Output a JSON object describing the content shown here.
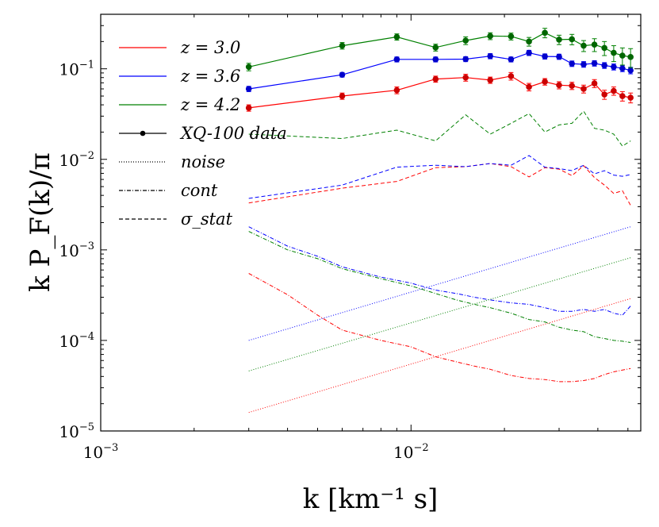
{
  "chart_data": {
    "type": "line",
    "xscale": "log",
    "yscale": "log",
    "xlim": [
      0.001,
      0.055
    ],
    "ylim": [
      1e-05,
      0.4
    ],
    "xlabel": "k [km⁻¹ s]",
    "ylabel": "k P_F(k)/π",
    "grid": false,
    "legend_position": "top-left",
    "x_ticks": [
      {
        "value": 0.001,
        "base": "10",
        "exp": "−3"
      },
      {
        "value": 0.01,
        "base": "10",
        "exp": "−2"
      }
    ],
    "y_ticks": [
      {
        "value": 1e-05,
        "base": "10",
        "exp": "−5"
      },
      {
        "value": 0.0001,
        "base": "10",
        "exp": "−4"
      },
      {
        "value": 0.001,
        "base": "10",
        "exp": "−3"
      },
      {
        "value": 0.01,
        "base": "10",
        "exp": "−2"
      },
      {
        "value": 0.1,
        "base": "10",
        "exp": "−1"
      }
    ],
    "legend": [
      {
        "label": "z = 3.0",
        "kind": "color",
        "color": "#ff0000"
      },
      {
        "label": "z = 3.6",
        "kind": "color",
        "color": "#0000ff"
      },
      {
        "label": "z = 4.2",
        "kind": "color",
        "color": "#008000"
      },
      {
        "label": "XQ-100 data",
        "kind": "data"
      },
      {
        "label": "noise",
        "kind": "dotted"
      },
      {
        "label": "cont",
        "kind": "dashdot"
      },
      {
        "label": "σ_stat",
        "kind": "dashed"
      }
    ],
    "series": [
      {
        "name": "z = 3.0",
        "color": "#ff0000",
        "data_color": "#cc0000",
        "data": {
          "x": [
            0.003,
            0.006,
            0.009,
            0.012,
            0.015,
            0.018,
            0.021,
            0.024,
            0.027,
            0.03,
            0.033,
            0.036,
            0.039,
            0.042,
            0.045,
            0.048,
            0.051
          ],
          "y": [
            0.037,
            0.05,
            0.058,
            0.077,
            0.08,
            0.075,
            0.083,
            0.063,
            0.072,
            0.066,
            0.065,
            0.06,
            0.069,
            0.052,
            0.057,
            0.05,
            0.048
          ],
          "err": [
            0.003,
            0.004,
            0.005,
            0.006,
            0.007,
            0.006,
            0.008,
            0.006,
            0.006,
            0.006,
            0.006,
            0.006,
            0.007,
            0.006,
            0.006,
            0.006,
            0.006
          ]
        },
        "sigma_stat": {
          "x": [
            0.003,
            0.006,
            0.009,
            0.012,
            0.015,
            0.018,
            0.021,
            0.024,
            0.027,
            0.03,
            0.033,
            0.036,
            0.039,
            0.042,
            0.045,
            0.048,
            0.051
          ],
          "y": [
            0.0033,
            0.0048,
            0.0057,
            0.0081,
            0.0083,
            0.009,
            0.0083,
            0.0064,
            0.0081,
            0.0078,
            0.0066,
            0.0085,
            0.0063,
            0.0052,
            0.0042,
            0.0045,
            0.0031
          ]
        },
        "noise": {
          "x": [
            0.003,
            0.051
          ],
          "y": [
            1.6e-05,
            0.00029
          ]
        },
        "cont": {
          "x": [
            0.003,
            0.004,
            0.005,
            0.006,
            0.008,
            0.01,
            0.012,
            0.014,
            0.016,
            0.018,
            0.021,
            0.024,
            0.027,
            0.03,
            0.033,
            0.036,
            0.039,
            0.042,
            0.045,
            0.048,
            0.051
          ],
          "y": [
            0.00055,
            0.00032,
            0.00019,
            0.00013,
            0.0001,
            8.5e-05,
            6.6e-05,
            5.8e-05,
            5.2e-05,
            4.8e-05,
            4.1e-05,
            3.8e-05,
            3.7e-05,
            3.5e-05,
            3.5e-05,
            3.6e-05,
            3.8e-05,
            4.2e-05,
            4.5e-05,
            4.7e-05,
            4.9e-05
          ]
        }
      },
      {
        "name": "z = 3.6",
        "color": "#0000ff",
        "data_color": "#0000cc",
        "data": {
          "x": [
            0.003,
            0.006,
            0.009,
            0.012,
            0.015,
            0.018,
            0.021,
            0.024,
            0.027,
            0.03,
            0.033,
            0.036,
            0.039,
            0.042,
            0.045,
            0.048,
            0.051
          ],
          "y": [
            0.06,
            0.086,
            0.127,
            0.127,
            0.128,
            0.138,
            0.127,
            0.15,
            0.137,
            0.136,
            0.114,
            0.112,
            0.115,
            0.109,
            0.105,
            0.101,
            0.096
          ],
          "err": [
            0.004,
            0.005,
            0.008,
            0.008,
            0.008,
            0.009,
            0.008,
            0.01,
            0.009,
            0.009,
            0.008,
            0.008,
            0.008,
            0.008,
            0.008,
            0.008,
            0.008
          ]
        },
        "sigma_stat": {
          "x": [
            0.003,
            0.006,
            0.009,
            0.012,
            0.015,
            0.018,
            0.021,
            0.024,
            0.027,
            0.03,
            0.033,
            0.036,
            0.039,
            0.042,
            0.045,
            0.048,
            0.051
          ],
          "y": [
            0.0037,
            0.0052,
            0.0082,
            0.0086,
            0.0083,
            0.009,
            0.0086,
            0.011,
            0.0082,
            0.0079,
            0.0075,
            0.0086,
            0.0069,
            0.0075,
            0.0067,
            0.0065,
            0.0068
          ]
        },
        "noise": {
          "x": [
            0.003,
            0.051
          ],
          "y": [
            0.0001,
            0.0018
          ]
        },
        "cont": {
          "x": [
            0.003,
            0.004,
            0.005,
            0.006,
            0.008,
            0.01,
            0.012,
            0.014,
            0.016,
            0.018,
            0.021,
            0.024,
            0.027,
            0.03,
            0.033,
            0.036,
            0.039,
            0.042,
            0.045,
            0.048,
            0.051
          ],
          "y": [
            0.0018,
            0.0011,
            0.00085,
            0.00065,
            0.0005,
            0.00043,
            0.00036,
            0.00033,
            0.0003,
            0.00028,
            0.00026,
            0.00025,
            0.00023,
            0.00021,
            0.00021,
            0.00022,
            0.00021,
            0.00022,
            0.0002,
            0.00019,
            0.00024
          ]
        }
      },
      {
        "name": "z = 4.2",
        "color": "#008000",
        "data_color": "#006600",
        "data": {
          "x": [
            0.003,
            0.006,
            0.009,
            0.012,
            0.015,
            0.018,
            0.021,
            0.024,
            0.027,
            0.03,
            0.033,
            0.036,
            0.039,
            0.042,
            0.045,
            0.048,
            0.051
          ],
          "y": [
            0.105,
            0.18,
            0.225,
            0.172,
            0.205,
            0.23,
            0.228,
            0.2,
            0.25,
            0.21,
            0.212,
            0.18,
            0.185,
            0.17,
            0.15,
            0.14,
            0.135
          ],
          "err": [
            0.01,
            0.015,
            0.018,
            0.015,
            0.02,
            0.02,
            0.02,
            0.022,
            0.03,
            0.025,
            0.028,
            0.025,
            0.03,
            0.03,
            0.03,
            0.03,
            0.032
          ]
        },
        "sigma_stat": {
          "x": [
            0.003,
            0.006,
            0.009,
            0.012,
            0.015,
            0.018,
            0.021,
            0.024,
            0.027,
            0.03,
            0.033,
            0.036,
            0.039,
            0.042,
            0.045,
            0.048,
            0.051
          ],
          "y": [
            0.019,
            0.017,
            0.021,
            0.016,
            0.031,
            0.019,
            0.025,
            0.032,
            0.02,
            0.024,
            0.025,
            0.034,
            0.022,
            0.021,
            0.019,
            0.014,
            0.016
          ]
        },
        "noise": {
          "x": [
            0.003,
            0.051
          ],
          "y": [
            4.6e-05,
            0.00082
          ]
        },
        "cont": {
          "x": [
            0.003,
            0.004,
            0.005,
            0.006,
            0.008,
            0.01,
            0.012,
            0.014,
            0.016,
            0.018,
            0.021,
            0.024,
            0.027,
            0.03,
            0.033,
            0.036,
            0.039,
            0.042,
            0.045,
            0.048,
            0.051
          ],
          "y": [
            0.0016,
            0.001,
            0.0008,
            0.00062,
            0.00048,
            0.0004,
            0.00033,
            0.00028,
            0.00025,
            0.00023,
            0.0002,
            0.00017,
            0.00016,
            0.00014,
            0.00013,
            0.000125,
            0.00011,
            0.000105,
            0.0001,
            9.8e-05,
            9.5e-05
          ]
        }
      }
    ]
  }
}
